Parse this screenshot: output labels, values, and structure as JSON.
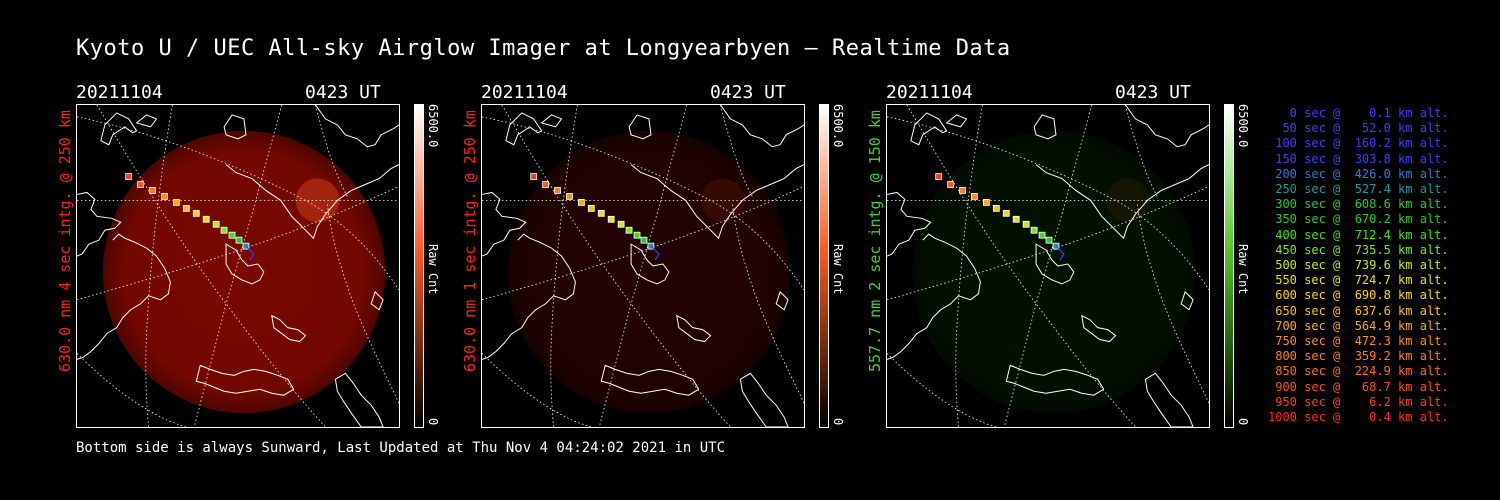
{
  "title": "Kyoto U / UEC All-sky Airglow Imager at Longyearbyen — Realtime Data",
  "footer": "Bottom side is always Sunward, Last Updated at Thu Nov  4 04:24:02 2021 in UTC",
  "panels": [
    {
      "date": "20211104",
      "time": "0423 UT",
      "ylabel": "630.0 nm 4 sec intg. @ 250 km",
      "label_color": "#ff2020",
      "colorbar_max": "6500.0",
      "colorbar_min": "0",
      "colorbar_label": "Raw Cnt",
      "cb_color": "#ff5a1e",
      "glow_color": "#8e0a00",
      "glow_level": 1.0
    },
    {
      "date": "20211104",
      "time": "0423 UT",
      "ylabel": "630.0 nm 1 sec intg. @ 250 km",
      "label_color": "#ff2020",
      "colorbar_max": "6500.0",
      "colorbar_min": "0",
      "colorbar_label": "Raw Cnt",
      "cb_color": "#ff5a1e",
      "glow_color": "#8e0a00",
      "glow_level": 0.28
    },
    {
      "date": "20211104",
      "time": "0423 UT",
      "ylabel": "557.7 nm 2 sec intg. @ 150 km",
      "label_color": "#3cd23c",
      "colorbar_max": "6500.0",
      "colorbar_min": "0",
      "colorbar_label": "Raw Cnt",
      "cb_color": "#52c81e",
      "glow_color": "#0a5a00",
      "glow_level": 0.22
    }
  ],
  "legend": [
    {
      "text": "   0 sec @    0.1 km alt.",
      "color": "#3c3cff"
    },
    {
      "text": "  50 sec @   52.0 km alt.",
      "color": "#3c3cff"
    },
    {
      "text": " 100 sec @  160.2 km alt.",
      "color": "#3c3cff"
    },
    {
      "text": " 150 sec @  303.8 km alt.",
      "color": "#3c3cff"
    },
    {
      "text": " 200 sec @  426.0 km alt.",
      "color": "#2a7ad6"
    },
    {
      "text": " 250 sec @  527.4 km alt.",
      "color": "#1e9a9a"
    },
    {
      "text": " 300 sec @  608.6 km alt.",
      "color": "#28c830"
    },
    {
      "text": " 350 sec @  670.2 km alt.",
      "color": "#28c830"
    },
    {
      "text": " 400 sec @  712.4 km alt.",
      "color": "#3ce020"
    },
    {
      "text": " 450 sec @  735.5 km alt.",
      "color": "#78e820"
    },
    {
      "text": " 500 sec @  739.6 km alt.",
      "color": "#c8e820"
    },
    {
      "text": " 550 sec @  724.7 km alt.",
      "color": "#e8e020"
    },
    {
      "text": " 600 sec @  690.8 km alt.",
      "color": "#ffd21e"
    },
    {
      "text": " 650 sec @  637.6 km alt.",
      "color": "#ffbe1e"
    },
    {
      "text": " 700 sec @  564.9 km alt.",
      "color": "#ffa51e"
    },
    {
      "text": " 750 sec @  472.3 km alt.",
      "color": "#ff8c1e"
    },
    {
      "text": " 800 sec @  359.2 km alt.",
      "color": "#ff7d1e"
    },
    {
      "text": " 850 sec @  224.9 km alt.",
      "color": "#ff6a1e"
    },
    {
      "text": " 900 sec @   68.7 km alt.",
      "color": "#ff4a1e"
    },
    {
      "text": " 950 sec @    6.2 km alt.",
      "color": "#ff3a1e"
    },
    {
      "text": "1000 sec @    0.4 km alt.",
      "color": "#ff2a1e"
    }
  ]
}
